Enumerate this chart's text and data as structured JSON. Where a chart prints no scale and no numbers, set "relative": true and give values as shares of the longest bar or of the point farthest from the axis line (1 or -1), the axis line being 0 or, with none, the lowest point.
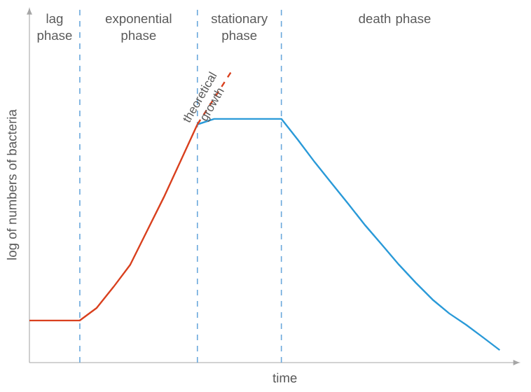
{
  "chart_data": {
    "type": "line",
    "relative": true,
    "xlabel": "time",
    "ylabel": "log of numbers of bacteria",
    "marker": "none",
    "line_style": "solid",
    "categories": [
      null,
      null,
      null,
      null,
      null,
      null,
      null,
      null,
      null,
      null,
      null,
      null,
      null,
      null,
      null,
      null,
      null,
      null,
      null,
      null,
      null,
      null,
      null,
      null,
      null,
      null,
      null,
      null,
      null
    ],
    "series": [
      {
        "color": "#d9401e",
        "values": [
          0.145,
          0.145,
          0.145,
          0.145,
          0.188,
          0.26,
          0.337,
          0.453,
          0.569,
          0.694,
          0.82,
          null,
          null,
          null,
          null,
          null,
          null,
          null,
          null,
          null,
          null,
          null,
          null,
          null,
          null,
          null,
          null,
          null,
          null
        ]
      },
      {
        "color": "#2a9ad8",
        "values": [
          null,
          null,
          null,
          null,
          null,
          null,
          null,
          null,
          null,
          null,
          0.82,
          0.839,
          0.839,
          0.839,
          0.839,
          0.839,
          0.766,
          0.689,
          0.617,
          0.545,
          0.472,
          0.405,
          0.337,
          0.275,
          0.217,
          0.169,
          0.13,
          0.087,
          0.043
        ]
      },
      {
        "color": "#d9401e",
        "line_style": "dashed",
        "values": [
          null,
          null,
          null,
          null,
          null,
          null,
          null,
          null,
          null,
          null,
          0.82,
          null,
          1.0,
          null,
          null,
          null,
          null,
          null,
          null,
          null,
          null,
          null,
          null,
          null,
          null,
          null,
          null,
          null,
          null
        ]
      }
    ],
    "grid": "x",
    "legend": false,
    "annotations": [
      "lag phase",
      "exponential phase",
      "stationary phase",
      "death phase",
      "theoretical growth"
    ]
  }
}
